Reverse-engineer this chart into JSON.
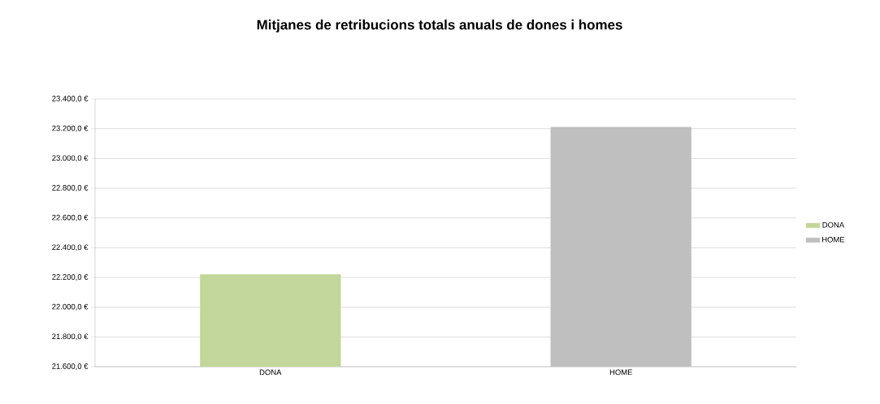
{
  "chart_data": {
    "type": "bar",
    "title": "Mitjanes de retribucions totals anuals de dones i homes",
    "categories": [
      "DONA",
      "HOME"
    ],
    "series": [
      {
        "name": "DONA",
        "color": "#c3d69b",
        "values": [
          22220,
          null
        ]
      },
      {
        "name": "HOME",
        "color": "#bfbfbf",
        "values": [
          null,
          23210
        ]
      }
    ],
    "ylim": [
      21600,
      23400
    ],
    "yticks": [
      {
        "value": 21600,
        "label": "21.600,0 €"
      },
      {
        "value": 21800,
        "label": "21.800,0 €"
      },
      {
        "value": 22000,
        "label": "22.000,0 €"
      },
      {
        "value": 22200,
        "label": "22.200,0 €"
      },
      {
        "value": 22400,
        "label": "22.400,0 €"
      },
      {
        "value": 22600,
        "label": "22.600,0 €"
      },
      {
        "value": 22800,
        "label": "22.800,0 €"
      },
      {
        "value": 23000,
        "label": "23.000,0 €"
      },
      {
        "value": 23200,
        "label": "23.200,0 €"
      },
      {
        "value": 23400,
        "label": "23.400,0 €"
      }
    ],
    "grid": "y",
    "legend": "right"
  }
}
